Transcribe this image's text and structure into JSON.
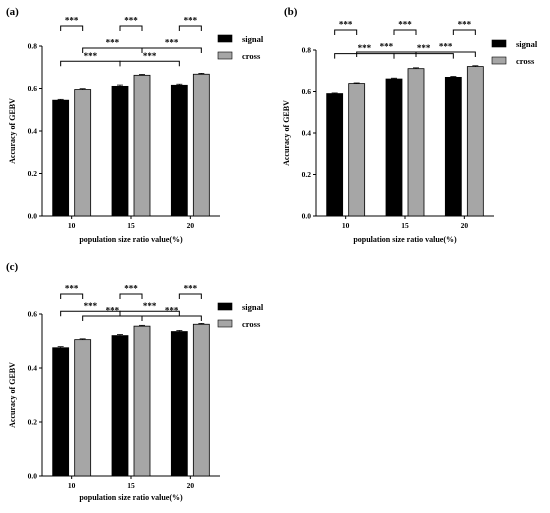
{
  "chart_data": [
    {
      "type": "bar",
      "panel_label": "(a)",
      "categories": [
        "10",
        "15",
        "20"
      ],
      "series": [
        {
          "name": "signal",
          "values": [
            0.545,
            0.61,
            0.615
          ],
          "errors": [
            0.004,
            0.006,
            0.005
          ],
          "color": "#000000"
        },
        {
          "name": "cross",
          "values": [
            0.595,
            0.662,
            0.667
          ],
          "errors": [
            0.004,
            0.004,
            0.004
          ],
          "color": "#a6a6a6"
        }
      ],
      "xlabel": "population size ratio value(%)",
      "ylabel": "Accuracy of GEBV",
      "ylim": [
        0,
        0.8
      ],
      "yticks": [
        "0.0",
        "0.2",
        "0.4",
        "0.6",
        "0.8"
      ],
      "legend_position": "right",
      "significance": [
        {
          "from": [
            0,
            0
          ],
          "to": [
            0,
            1
          ],
          "label": "***",
          "level": 3
        },
        {
          "from": [
            1,
            0
          ],
          "to": [
            1,
            1
          ],
          "label": "***",
          "level": 3
        },
        {
          "from": [
            2,
            0
          ],
          "to": [
            2,
            1
          ],
          "label": "***",
          "level": 3
        },
        {
          "from": [
            0,
            1
          ],
          "to": [
            1,
            1
          ],
          "label": "***",
          "level": 2
        },
        {
          "from": [
            1,
            1
          ],
          "to": [
            2,
            1
          ],
          "label": "***",
          "level": 2
        },
        {
          "from": [
            0,
            0
          ],
          "to": [
            1,
            0
          ],
          "label": "***",
          "level": 1
        },
        {
          "from": [
            1,
            0
          ],
          "to": [
            2,
            0
          ],
          "label": "***",
          "level": 1
        }
      ]
    },
    {
      "type": "bar",
      "panel_label": "(b)",
      "categories": [
        "10",
        "15",
        "20"
      ],
      "series": [
        {
          "name": "signal",
          "values": [
            0.59,
            0.66,
            0.668
          ],
          "errors": [
            0.003,
            0.004,
            0.004
          ],
          "color": "#000000"
        },
        {
          "name": "cross",
          "values": [
            0.638,
            0.71,
            0.72
          ],
          "errors": [
            0.003,
            0.004,
            0.004
          ],
          "color": "#a6a6a6"
        }
      ],
      "xlabel": "population size ratio value(%)",
      "ylabel": "Accuracy of GEBV",
      "ylim": [
        0,
        0.8
      ],
      "yticks": [
        "0.0",
        "0.2",
        "0.4",
        "0.6",
        "0.8"
      ],
      "legend_position": "right",
      "significance": [
        {
          "from": [
            0,
            0
          ],
          "to": [
            0,
            1
          ],
          "label": "***",
          "level": 3
        },
        {
          "from": [
            1,
            0
          ],
          "to": [
            1,
            1
          ],
          "label": "***",
          "level": 3
        },
        {
          "from": [
            2,
            0
          ],
          "to": [
            2,
            1
          ],
          "label": "***",
          "level": 3
        },
        {
          "from": [
            0,
            1
          ],
          "to": [
            1,
            1
          ],
          "label": "***",
          "level": 2
        },
        {
          "from": [
            1,
            1
          ],
          "to": [
            2,
            1
          ],
          "label": "***",
          "level": 2
        },
        {
          "from": [
            0,
            0
          ],
          "to": [
            1,
            0
          ],
          "label": "***",
          "level": 1
        },
        {
          "from": [
            1,
            0
          ],
          "to": [
            2,
            0
          ],
          "label": "***",
          "level": 1
        }
      ]
    },
    {
      "type": "bar",
      "panel_label": "(c)",
      "categories": [
        "10",
        "15",
        "20"
      ],
      "series": [
        {
          "name": "signal",
          "values": [
            0.475,
            0.52,
            0.535
          ],
          "errors": [
            0.004,
            0.004,
            0.004
          ],
          "color": "#000000"
        },
        {
          "name": "cross",
          "values": [
            0.505,
            0.555,
            0.562
          ],
          "errors": [
            0.003,
            0.003,
            0.003
          ],
          "color": "#a6a6a6"
        }
      ],
      "xlabel": "population size ratio value(%)",
      "ylabel": "Accuracy of GEBV",
      "ylim": [
        0,
        0.6
      ],
      "yticks": [
        "0.0",
        "0.2",
        "0.4",
        "0.6"
      ],
      "legend_position": "right",
      "significance": [
        {
          "from": [
            0,
            0
          ],
          "to": [
            0,
            1
          ],
          "label": "***",
          "level": 3
        },
        {
          "from": [
            1,
            0
          ],
          "to": [
            1,
            1
          ],
          "label": "***",
          "level": 3
        },
        {
          "from": [
            2,
            0
          ],
          "to": [
            2,
            1
          ],
          "label": "***",
          "level": 3
        },
        {
          "from": [
            0,
            1
          ],
          "to": [
            1,
            1
          ],
          "label": "***",
          "level": 2
        },
        {
          "from": [
            1,
            1
          ],
          "to": [
            2,
            1
          ],
          "label": "***",
          "level": 2
        },
        {
          "from": [
            0,
            0
          ],
          "to": [
            1,
            0
          ],
          "label": "***",
          "level": 1
        },
        {
          "from": [
            1,
            0
          ],
          "to": [
            2,
            0
          ],
          "label": "***",
          "level": 1
        }
      ]
    }
  ]
}
